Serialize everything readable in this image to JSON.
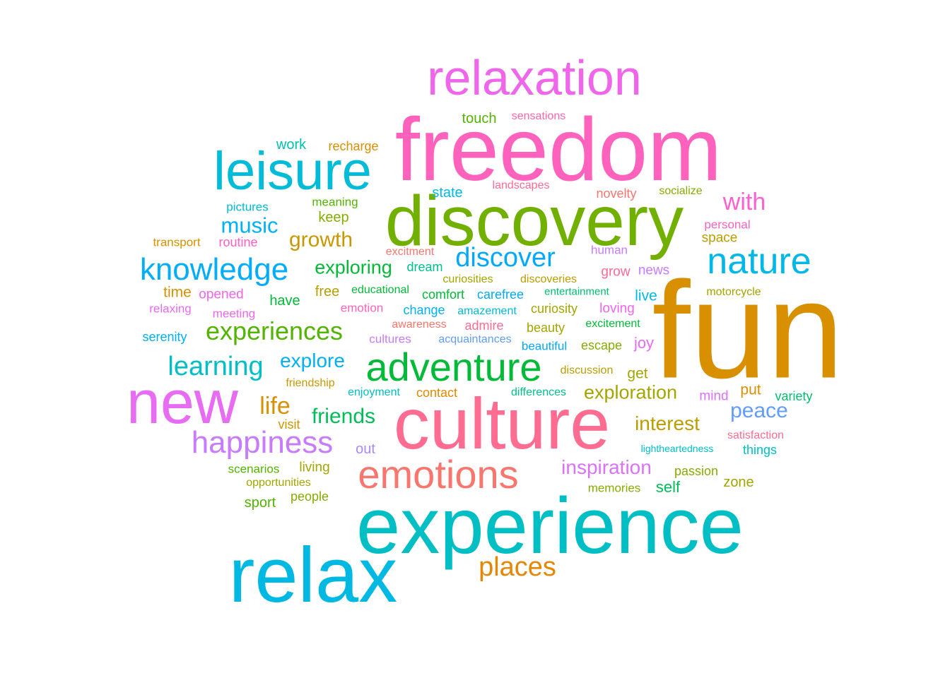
{
  "words": [
    {
      "text": "fun",
      "color": "#D89000"
    },
    {
      "text": "freedom",
      "color": "#FF62BC"
    },
    {
      "text": "experience",
      "color": "#00BFC4"
    },
    {
      "text": "relax",
      "color": "#00B9E3"
    },
    {
      "text": "culture",
      "color": "#FF6C91"
    },
    {
      "text": "discovery",
      "color": "#72B000"
    },
    {
      "text": "new",
      "color": "#E76BF3"
    },
    {
      "text": "relaxation",
      "color": "#F066EA"
    },
    {
      "text": "leisure",
      "color": "#00BCD8"
    },
    {
      "text": "emotions",
      "color": "#F8766D"
    },
    {
      "text": "adventure",
      "color": "#00BA38"
    },
    {
      "text": "nature",
      "color": "#00B8E7"
    },
    {
      "text": "knowledge",
      "color": "#00ADFA"
    },
    {
      "text": "happiness",
      "color": "#C77CFF"
    },
    {
      "text": "discover",
      "color": "#00A9FF"
    },
    {
      "text": "experiences",
      "color": "#53B400"
    },
    {
      "text": "learning",
      "color": "#00BFC4"
    },
    {
      "text": "places",
      "color": "#E58700"
    },
    {
      "text": "music",
      "color": "#00B0F6"
    },
    {
      "text": "life",
      "color": "#D89000"
    },
    {
      "text": "with",
      "color": "#FD61D1"
    },
    {
      "text": "inspiration",
      "color": "#DC71FA"
    },
    {
      "text": "growth",
      "color": "#C99800"
    },
    {
      "text": "exploring",
      "color": "#00BA38"
    },
    {
      "text": "explore",
      "color": "#00B0F6"
    },
    {
      "text": "friends",
      "color": "#00BC59"
    },
    {
      "text": "exploration",
      "color": "#A3A500"
    },
    {
      "text": "interest",
      "color": "#BB9D00"
    },
    {
      "text": "peace",
      "color": "#619CFF"
    },
    {
      "text": "touch",
      "color": "#53B400"
    },
    {
      "text": "sensations",
      "color": "#FF65AC"
    },
    {
      "text": "work",
      "color": "#00C0AF"
    },
    {
      "text": "recharge",
      "color": "#D89000"
    },
    {
      "text": "state",
      "color": "#00B8E7"
    },
    {
      "text": "landscapes",
      "color": "#FF6C91"
    },
    {
      "text": "novelty",
      "color": "#F8766D"
    },
    {
      "text": "socialize",
      "color": "#85AD00"
    },
    {
      "text": "pictures",
      "color": "#00BCD8"
    },
    {
      "text": "meaning",
      "color": "#53B400"
    },
    {
      "text": "keep",
      "color": "#85AD00"
    },
    {
      "text": "personal",
      "color": "#FF62BC"
    },
    {
      "text": "space",
      "color": "#BB9D00"
    },
    {
      "text": "transport",
      "color": "#D89000"
    },
    {
      "text": "routine",
      "color": "#FF61C3"
    },
    {
      "text": "excitment",
      "color": "#F8766D"
    },
    {
      "text": "human",
      "color": "#C77CFF"
    },
    {
      "text": "dream",
      "color": "#00C08B"
    },
    {
      "text": "curiosities",
      "color": "#A3A500"
    },
    {
      "text": "discoveries",
      "color": "#BB9D00"
    },
    {
      "text": "grow",
      "color": "#FF6C91"
    },
    {
      "text": "news",
      "color": "#C77CFF"
    },
    {
      "text": "time",
      "color": "#D89000"
    },
    {
      "text": "opened",
      "color": "#F066EA"
    },
    {
      "text": "free",
      "color": "#BB9D00"
    },
    {
      "text": "educational",
      "color": "#00BA38"
    },
    {
      "text": "comfort",
      "color": "#00BA38"
    },
    {
      "text": "carefree",
      "color": "#00A9FF"
    },
    {
      "text": "entertainment",
      "color": "#00BE70"
    },
    {
      "text": "live",
      "color": "#00B8E7"
    },
    {
      "text": "motorcycle",
      "color": "#A3A500"
    },
    {
      "text": "relaxing",
      "color": "#E76BF3"
    },
    {
      "text": "meeting",
      "color": "#F066EA"
    },
    {
      "text": "have",
      "color": "#00BA38"
    },
    {
      "text": "emotion",
      "color": "#FF62BC"
    },
    {
      "text": "change",
      "color": "#00B0F6"
    },
    {
      "text": "amazement",
      "color": "#00BCD8"
    },
    {
      "text": "curiosity",
      "color": "#A3A500"
    },
    {
      "text": "loving",
      "color": "#F066EA"
    },
    {
      "text": "serenity",
      "color": "#00B0F6"
    },
    {
      "text": "awareness",
      "color": "#F8766D"
    },
    {
      "text": "admire",
      "color": "#FF6C91"
    },
    {
      "text": "beauty",
      "color": "#A3A500"
    },
    {
      "text": "excitement",
      "color": "#00BA38"
    },
    {
      "text": "cultures",
      "color": "#C77CFF"
    },
    {
      "text": "acquaintances",
      "color": "#619CFF"
    },
    {
      "text": "beautiful",
      "color": "#00A9FF"
    },
    {
      "text": "escape",
      "color": "#85AD00"
    },
    {
      "text": "joy",
      "color": "#E76BF3"
    },
    {
      "text": "discussion",
      "color": "#BB9D00"
    },
    {
      "text": "get",
      "color": "#A3A500"
    },
    {
      "text": "friendship",
      "color": "#C99800"
    },
    {
      "text": "enjoyment",
      "color": "#00BFC4"
    },
    {
      "text": "contact",
      "color": "#E58700"
    },
    {
      "text": "differences",
      "color": "#00C08B"
    },
    {
      "text": "mind",
      "color": "#DC71FA"
    },
    {
      "text": "put",
      "color": "#D89000"
    },
    {
      "text": "variety",
      "color": "#00BE70"
    },
    {
      "text": "visit",
      "color": "#C99800"
    },
    {
      "text": "satisfaction",
      "color": "#FF6C91"
    },
    {
      "text": "out",
      "color": "#AC88FF"
    },
    {
      "text": "lightheartedness",
      "color": "#00BFC4"
    },
    {
      "text": "things",
      "color": "#00BFC4"
    },
    {
      "text": "scenarios",
      "color": "#53B400"
    },
    {
      "text": "living",
      "color": "#A3A500"
    },
    {
      "text": "passion",
      "color": "#85AD00"
    },
    {
      "text": "opportunities",
      "color": "#A3A500"
    },
    {
      "text": "memories",
      "color": "#85AD00"
    },
    {
      "text": "self",
      "color": "#00BC59"
    },
    {
      "text": "zone",
      "color": "#A3A500"
    },
    {
      "text": "sport",
      "color": "#53B400"
    },
    {
      "text": "people",
      "color": "#85AD00"
    }
  ]
}
